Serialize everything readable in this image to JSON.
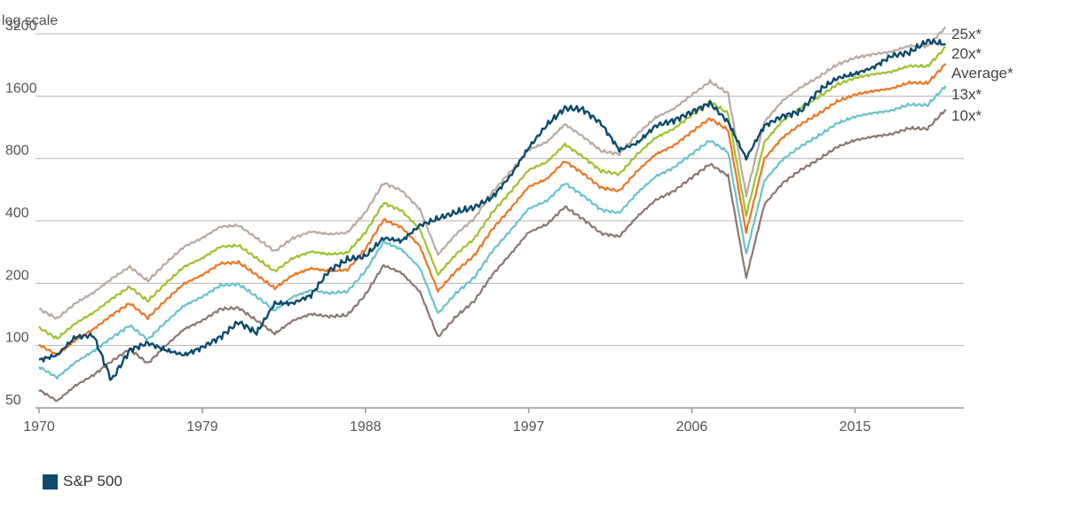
{
  "chart_data": {
    "type": "line",
    "y_scale": "log",
    "ylabel": "log scale",
    "yticks": [
      50,
      100,
      200,
      400,
      800,
      1600,
      3200
    ],
    "ytick_labels": [
      "50",
      "100",
      "200",
      "400",
      "800",
      "1600",
      "3200"
    ],
    "xticks": [
      1970,
      1979,
      1988,
      1997,
      2006,
      2015
    ],
    "xtick_labels": [
      "1970",
      "1979",
      "1988",
      "1997",
      "2006",
      "2015"
    ],
    "xlim": [
      1970,
      2021
    ],
    "ylim": [
      50,
      3900
    ],
    "grid": "horizontal",
    "legend": {
      "position": "bottom-left",
      "items": [
        "S&P 500"
      ]
    },
    "series": [
      {
        "name": "25x*",
        "color": "#b9aba3",
        "x": [
          1970,
          1971,
          1972,
          1973,
          1974,
          1975,
          1976,
          1977,
          1978,
          1979,
          1980,
          1981,
          1982,
          1983,
          1984,
          1985,
          1986,
          1987,
          1988,
          1989,
          1990,
          1991,
          1992,
          1993,
          1994,
          1995,
          1996,
          1997,
          1998,
          1999,
          2000,
          2001,
          2002,
          2003,
          2004,
          2005,
          2006,
          2007,
          2008,
          2009,
          2010,
          2011,
          2012,
          2013,
          2014,
          2015,
          2016,
          2017,
          2018,
          2019,
          2020
        ],
        "y": [
          150,
          135,
          160,
          180,
          210,
          240,
          205,
          250,
          300,
          330,
          375,
          380,
          330,
          285,
          330,
          355,
          345,
          350,
          440,
          610,
          560,
          455,
          275,
          345,
          410,
          550,
          690,
          880,
          960,
          1170,
          1020,
          870,
          840,
          1050,
          1260,
          1390,
          1620,
          1880,
          1650,
          530,
          1200,
          1520,
          1760,
          1980,
          2270,
          2450,
          2550,
          2620,
          2800,
          2780,
          3450
        ]
      },
      {
        "name": "20x*",
        "color": "#9dc231",
        "x": [
          1970,
          1971,
          1972,
          1973,
          1974,
          1975,
          1976,
          1977,
          1978,
          1979,
          1980,
          1981,
          1982,
          1983,
          1984,
          1985,
          1986,
          1987,
          1988,
          1989,
          1990,
          1991,
          1992,
          1993,
          1994,
          1995,
          1996,
          1997,
          1998,
          1999,
          2000,
          2001,
          2002,
          2003,
          2004,
          2005,
          2006,
          2007,
          2008,
          2009,
          2010,
          2011,
          2012,
          2013,
          2014,
          2015,
          2016,
          2017,
          2018,
          2019,
          2020
        ],
        "y": [
          122,
          108,
          128,
          144,
          168,
          192,
          164,
          200,
          240,
          264,
          300,
          304,
          264,
          228,
          264,
          284,
          276,
          280,
          352,
          488,
          448,
          364,
          220,
          276,
          328,
          440,
          552,
          704,
          768,
          936,
          816,
          696,
          672,
          840,
          1008,
          1112,
          1296,
          1504,
          1320,
          424,
          960,
          1216,
          1408,
          1584,
          1816,
          1960,
          2040,
          2096,
          2240,
          2224,
          2760
        ]
      },
      {
        "name": "Average*",
        "color": "#ee7623",
        "x": [
          1970,
          1971,
          1972,
          1973,
          1974,
          1975,
          1976,
          1977,
          1978,
          1979,
          1980,
          1981,
          1982,
          1983,
          1984,
          1985,
          1986,
          1987,
          1988,
          1989,
          1990,
          1991,
          1992,
          1993,
          1994,
          1995,
          1996,
          1997,
          1998,
          1999,
          2000,
          2001,
          2002,
          2003,
          2004,
          2005,
          2006,
          2007,
          2008,
          2009,
          2010,
          2011,
          2012,
          2013,
          2014,
          2015,
          2016,
          2017,
          2018,
          2019,
          2020
        ],
        "y": [
          101,
          90,
          106,
          120,
          140,
          160,
          136,
          166,
          199,
          219,
          249,
          252,
          219,
          189,
          219,
          236,
          229,
          232,
          292,
          405,
          372,
          302,
          183,
          229,
          272,
          365,
          458,
          584,
          637,
          777,
          677,
          578,
          558,
          697,
          837,
          923,
          1076,
          1248,
          1096,
          352,
          797,
          1009,
          1169,
          1315,
          1507,
          1627,
          1693,
          1740,
          1859,
          1846,
          2290
        ]
      },
      {
        "name": "13x*",
        "color": "#6ac3cb",
        "x": [
          1970,
          1971,
          1972,
          1973,
          1974,
          1975,
          1976,
          1977,
          1978,
          1979,
          1980,
          1981,
          1982,
          1983,
          1984,
          1985,
          1986,
          1987,
          1988,
          1989,
          1990,
          1991,
          1992,
          1993,
          1994,
          1995,
          1996,
          1997,
          1998,
          1999,
          2000,
          2001,
          2002,
          2003,
          2004,
          2005,
          2006,
          2007,
          2008,
          2009,
          2010,
          2011,
          2012,
          2013,
          2014,
          2015,
          2016,
          2017,
          2018,
          2019,
          2020
        ],
        "y": [
          79,
          70,
          83,
          94,
          109,
          125,
          107,
          130,
          156,
          172,
          195,
          198,
          172,
          148,
          172,
          185,
          179,
          182,
          229,
          317,
          291,
          237,
          143,
          179,
          213,
          286,
          359,
          458,
          499,
          608,
          530,
          452,
          437,
          546,
          655,
          723,
          842,
          978,
          858,
          276,
          624,
          790,
          915,
          1030,
          1180,
          1274,
          1326,
          1362,
          1456,
          1446,
          1794
        ]
      },
      {
        "name": "10x*",
        "color": "#8b7872",
        "x": [
          1970,
          1971,
          1972,
          1973,
          1974,
          1975,
          1976,
          1977,
          1978,
          1979,
          1980,
          1981,
          1982,
          1983,
          1984,
          1985,
          1986,
          1987,
          1988,
          1989,
          1990,
          1991,
          1992,
          1993,
          1994,
          1995,
          1996,
          1997,
          1998,
          1999,
          2000,
          2001,
          2002,
          2003,
          2004,
          2005,
          2006,
          2007,
          2008,
          2009,
          2010,
          2011,
          2012,
          2013,
          2014,
          2015,
          2016,
          2017,
          2018,
          2019,
          2020
        ],
        "y": [
          61,
          54,
          64,
          72,
          84,
          96,
          82,
          100,
          120,
          132,
          150,
          152,
          132,
          114,
          132,
          142,
          138,
          140,
          176,
          244,
          224,
          182,
          110,
          138,
          164,
          220,
          276,
          352,
          384,
          468,
          408,
          348,
          336,
          420,
          504,
          556,
          648,
          752,
          660,
          212,
          480,
          608,
          704,
          792,
          908,
          980,
          1020,
          1048,
          1120,
          1112,
          1380
        ]
      },
      {
        "name": "S&P 500",
        "color": "#0d4a6b",
        "x": [
          1970,
          1971,
          1972,
          1973,
          1974,
          1975,
          1976,
          1977,
          1978,
          1979,
          1980,
          1981,
          1982,
          1983,
          1984,
          1985,
          1986,
          1987,
          1988,
          1989,
          1990,
          1991,
          1992,
          1993,
          1994,
          1995,
          1996,
          1997,
          1998,
          1999,
          2000,
          2001,
          2002,
          2003,
          2004,
          2005,
          2006,
          2007,
          2008,
          2009,
          2010,
          2011,
          2012,
          2013,
          2014,
          2015,
          2016,
          2017,
          2018,
          2019,
          2020
        ],
        "y": [
          85,
          90,
          110,
          112,
          68,
          95,
          103,
          95,
          90,
          98,
          110,
          130,
          115,
          160,
          160,
          175,
          230,
          260,
          270,
          330,
          320,
          380,
          410,
          440,
          465,
          520,
          660,
          900,
          1160,
          1400,
          1380,
          1180,
          880,
          950,
          1150,
          1220,
          1340,
          1480,
          1200,
          800,
          1150,
          1280,
          1350,
          1700,
          1950,
          2050,
          2200,
          2500,
          2600,
          2950,
          2850
        ]
      }
    ],
    "series_end_labels": [
      "25x*",
      "20x*",
      "Average*",
      "13x*",
      "10x*"
    ]
  }
}
